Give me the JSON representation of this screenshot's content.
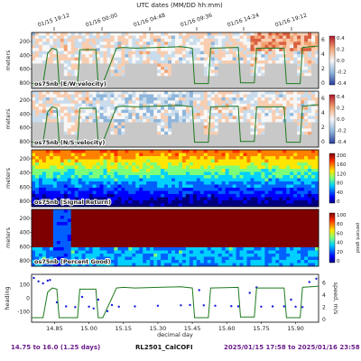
{
  "header": {
    "top_axis_title": "UTC dates (MM/DD hh:mm)",
    "top_ticks": [
      "01/15 19:12",
      "01/16 00:00",
      "01/16 04:48",
      "01/16 09:36",
      "01/16 14:24",
      "01/16 19:12"
    ]
  },
  "footer": {
    "day_range": "14.75 to 16.0 (1.25 days)",
    "cruise": "RL2501_CalCOFI",
    "date_range": "2025/01/15 17:58 to 2025/01/16 23:58",
    "left_color": "#6b1d8a",
    "right_color": "#6b1d8a"
  },
  "chart_data": [
    {
      "type": "heatmap",
      "label": "os75nb (E/W velocity)",
      "ylabel": "meters",
      "yticks": [
        200,
        400,
        600,
        800
      ],
      "colorbar_ticks": [
        "0.4",
        "0.2",
        "0.0",
        "-0.2",
        "-0.4"
      ],
      "colorbar_range": [
        -0.4,
        0.4
      ],
      "colormap": "diverging red-white-blue",
      "speed_axis_ticks": [
        "6",
        "4",
        "2",
        "0"
      ],
      "overlay": "ship speed (green)"
    },
    {
      "type": "heatmap",
      "label": "os75nb (N/S velocity)",
      "ylabel": "meters",
      "yticks": [
        200,
        400,
        600,
        800
      ],
      "colorbar_ticks": [
        "0.4",
        "0.2",
        "0.0",
        "-0.2",
        "-0.4"
      ],
      "colorbar_range": [
        -0.4,
        0.4
      ],
      "colormap": "diverging red-white-blue",
      "speed_axis_ticks": [
        "6",
        "4",
        "2",
        "0"
      ],
      "overlay": "ship speed (green)"
    },
    {
      "type": "heatmap",
      "label": "os75nb (Signal Return)",
      "ylabel": "meters",
      "yticks": [
        200,
        400,
        600,
        800
      ],
      "colorbar_ticks": [
        "200",
        "160",
        "120",
        "80",
        "40",
        "0"
      ],
      "colorbar_range": [
        0,
        200
      ],
      "colormap": "jet"
    },
    {
      "type": "heatmap",
      "label": "os75nb (Percent Good)",
      "ylabel": "meters",
      "yticks": [
        200,
        400,
        600,
        800
      ],
      "colorbar_ticks": [
        "100",
        "80",
        "60",
        "40",
        "20",
        "0"
      ],
      "colorbar_title": "percent good",
      "colorbar_range": [
        0,
        100
      ],
      "colormap": "jet"
    },
    {
      "type": "line",
      "ylabel_left": "heading",
      "ylabel_right": "speed, m/s",
      "xlabel": "decimal day",
      "xticks": [
        "14.85",
        "15.00",
        "15.15",
        "15.30",
        "15.45",
        "15.60",
        "15.75",
        "15.90"
      ],
      "left_ticks": [
        "100",
        "0",
        "-100"
      ],
      "right_ticks": [
        "6",
        "4",
        "2",
        "0"
      ],
      "xlim": [
        14.75,
        16.0
      ],
      "series": [
        {
          "name": "heading",
          "color": "#1a1adb",
          "x": [
            14.76,
            14.78,
            14.8,
            14.82,
            14.83,
            14.86,
            14.9,
            14.94,
            14.97,
            15.0,
            15.02,
            15.04,
            15.08,
            15.1,
            15.13,
            15.2,
            15.3,
            15.4,
            15.44,
            15.48,
            15.5,
            15.55,
            15.62,
            15.65,
            15.7,
            15.73,
            15.75,
            15.8,
            15.85,
            15.88,
            15.9,
            15.93,
            15.96,
            15.99
          ],
          "y": [
            150,
            125,
            110,
            130,
            135,
            -30,
            -60,
            -65,
            10,
            -62,
            -75,
            -10,
            -95,
            -50,
            -62,
            -60,
            -55,
            -52,
            -50,
            60,
            -52,
            -55,
            -58,
            -60,
            40,
            80,
            -62,
            -60,
            -60,
            -10,
            -62,
            -65,
            120,
            145
          ]
        },
        {
          "name": "speed",
          "color": "#1e7a1e",
          "x": [
            14.75,
            14.8,
            14.82,
            14.84,
            14.86,
            14.87,
            14.95,
            14.96,
            15.03,
            15.04,
            15.06,
            15.12,
            15.15,
            15.2,
            15.3,
            15.4,
            15.45,
            15.46,
            15.52,
            15.53,
            15.65,
            15.66,
            15.72,
            15.73,
            15.85,
            15.86,
            15.92,
            15.93,
            16.0
          ],
          "y": [
            0.3,
            0.3,
            4.5,
            5.2,
            5.0,
            0.3,
            0.3,
            5.0,
            5.0,
            0.3,
            0.3,
            5.2,
            5.3,
            5.2,
            5.3,
            5.4,
            5.2,
            0.3,
            0.3,
            5.2,
            5.3,
            0.4,
            0.4,
            5.2,
            5.2,
            0.3,
            0.3,
            5.3,
            5.5
          ]
        }
      ]
    }
  ]
}
